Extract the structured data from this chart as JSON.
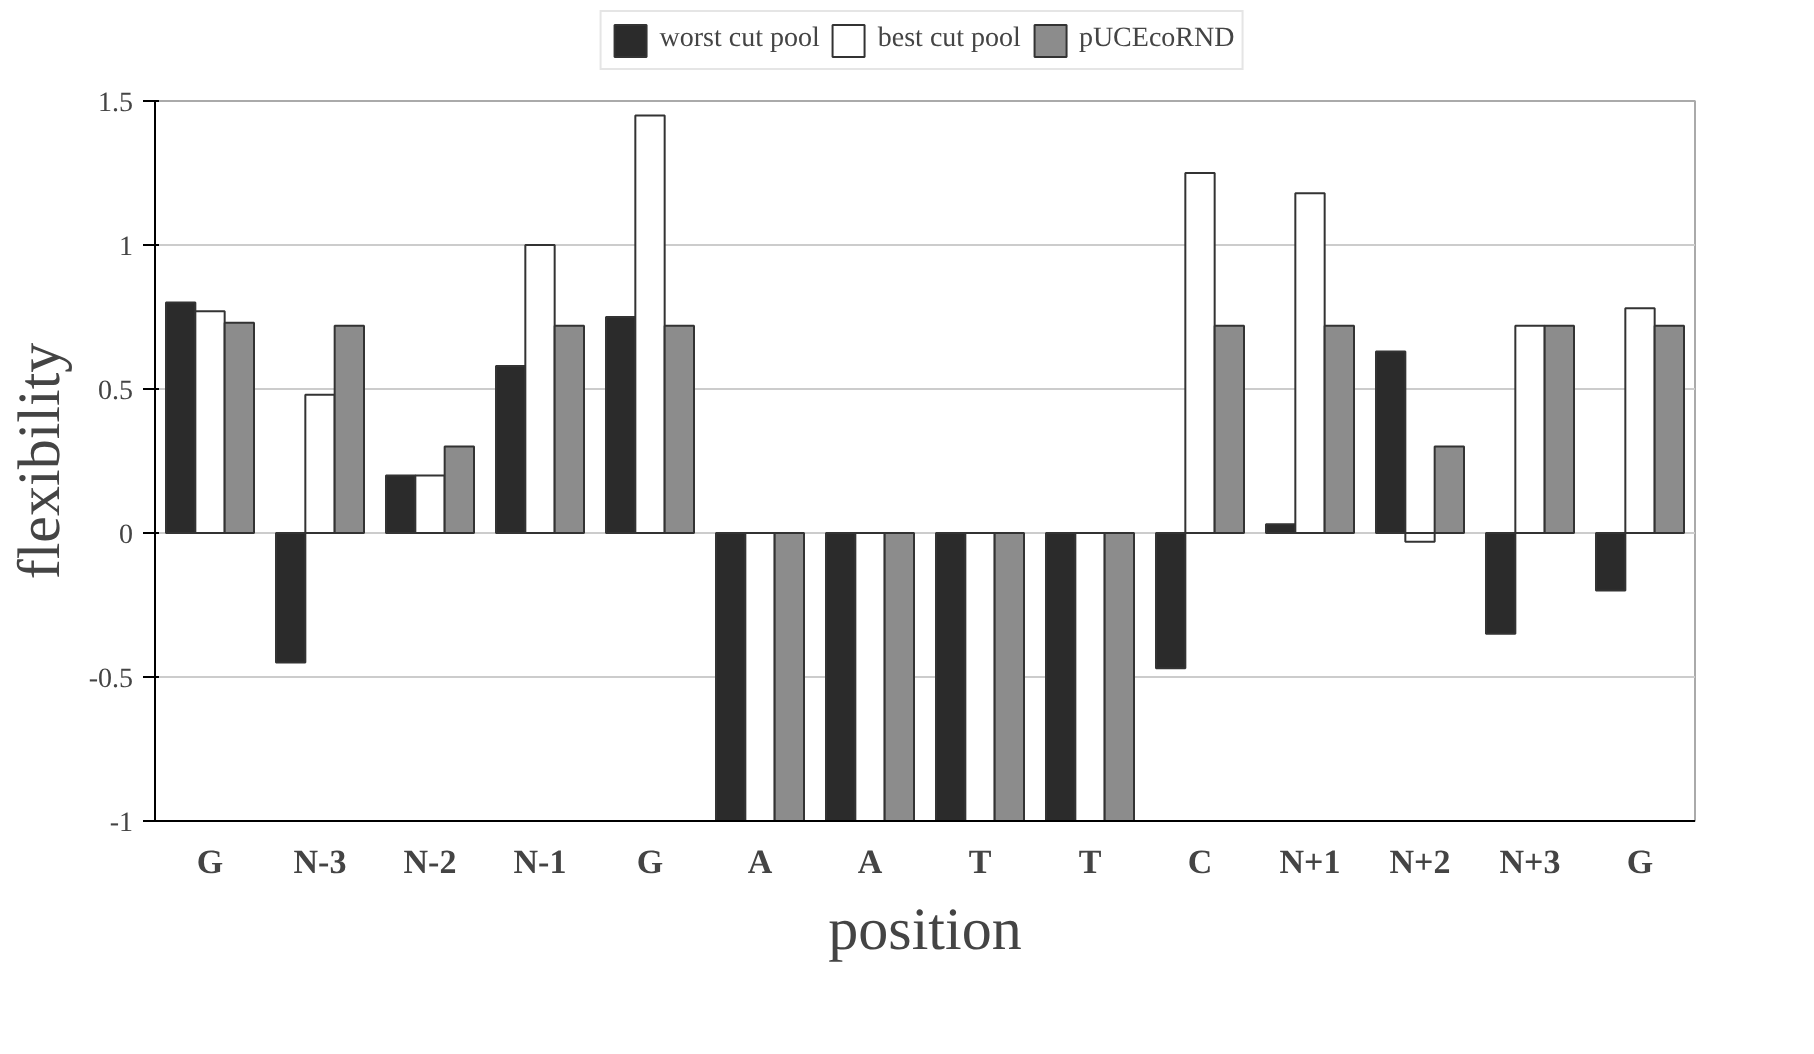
{
  "chart_data": {
    "type": "bar",
    "xlabel": "position",
    "ylabel": "flexibility",
    "categories": [
      "G",
      "N-3",
      "N-2",
      "N-1",
      "G",
      "A",
      "A",
      "T",
      "T",
      "C",
      "N+1",
      "N+2",
      "N+3",
      "G"
    ],
    "series": [
      {
        "name": "worst cut pool",
        "color": "#2b2b2b",
        "values": [
          0.8,
          -0.45,
          0.2,
          0.58,
          0.75,
          -1,
          -1,
          -1,
          -1,
          -0.47,
          0.03,
          0.63,
          -0.35,
          -0.2
        ]
      },
      {
        "name": "best cut pool",
        "color": "#ffffff",
        "values": [
          0.77,
          0.48,
          0.2,
          1.0,
          1.45,
          -1,
          -1,
          -1,
          -1,
          1.25,
          1.18,
          -0.03,
          0.72,
          0.78
        ]
      },
      {
        "name": "pUCEcoRND",
        "color": "#8c8c8c",
        "values": [
          0.73,
          0.72,
          0.3,
          0.72,
          0.72,
          -1,
          -1,
          -1,
          -1,
          0.72,
          0.72,
          0.3,
          0.72,
          0.72
        ]
      }
    ],
    "ylim": [
      -1,
      1.5
    ],
    "yticks": [
      -1,
      -0.5,
      0,
      0.5,
      1,
      1.5
    ],
    "grid": "y",
    "legend": "top"
  }
}
